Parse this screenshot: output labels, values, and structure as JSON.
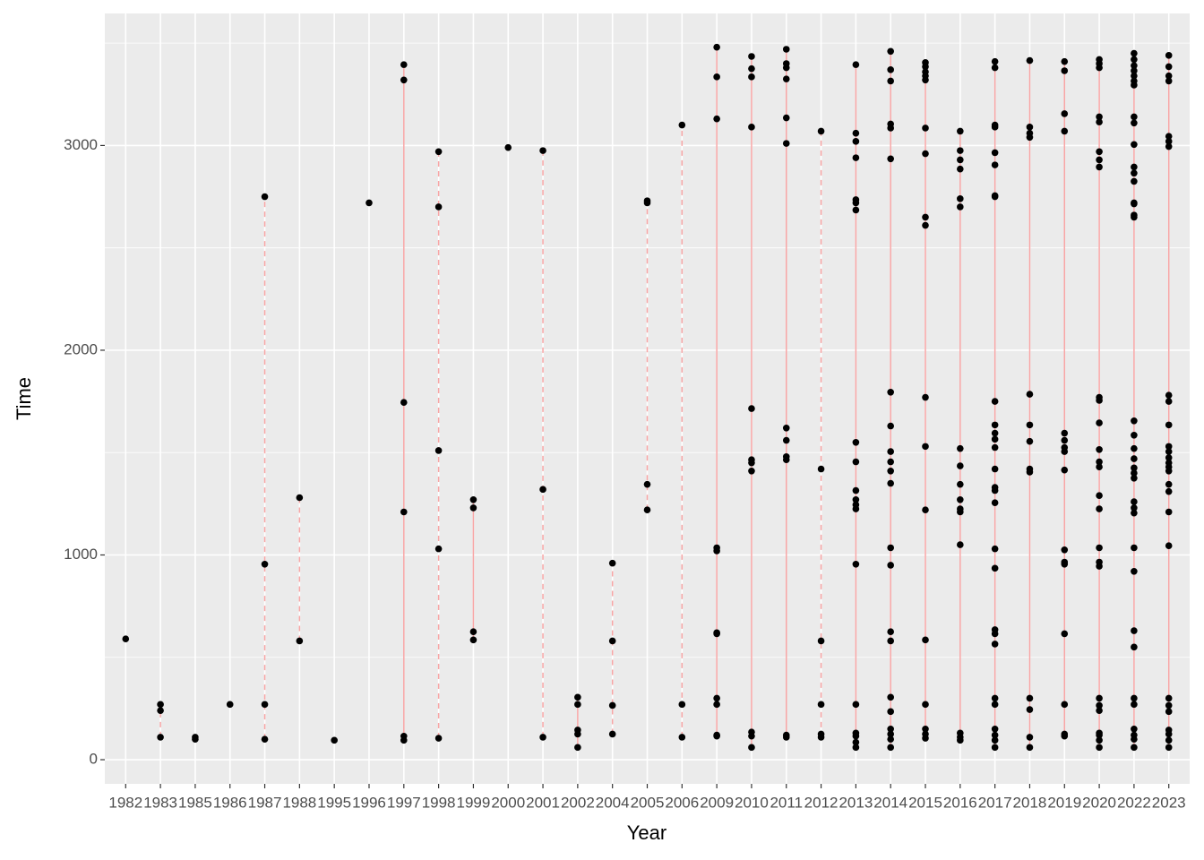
{
  "chart_data": {
    "type": "scatter",
    "x_label": "Year",
    "y_label": "Time",
    "categories": [
      "1982",
      "1983",
      "1985",
      "1986",
      "1987",
      "1988",
      "1995",
      "1996",
      "1997",
      "1998",
      "1999",
      "2000",
      "2001",
      "2002",
      "2004",
      "2005",
      "2006",
      "2009",
      "2010",
      "2011",
      "2012",
      "2013",
      "2014",
      "2015",
      "2016",
      "2017",
      "2018",
      "2019",
      "2020",
      "2022",
      "2023"
    ],
    "values": [
      [
        590
      ],
      [
        270,
        240,
        110
      ],
      [
        110,
        100
      ],
      [
        270
      ],
      [
        2750,
        955,
        270,
        100
      ],
      [
        1280,
        580
      ],
      [
        95
      ],
      [
        2720
      ],
      [
        3395,
        3320,
        1745,
        1210,
        115,
        95
      ],
      [
        2970,
        2700,
        1510,
        1030,
        105
      ],
      [
        1270,
        1230,
        625,
        585
      ],
      [
        2990
      ],
      [
        2975,
        1320,
        110
      ],
      [
        305,
        270,
        145,
        125,
        60
      ],
      [
        960,
        580,
        265,
        125
      ],
      [
        2730,
        2720,
        1345,
        1220
      ],
      [
        3100,
        270,
        110
      ],
      [
        3480,
        3335,
        3130,
        1035,
        1020,
        620,
        615,
        300,
        270,
        120,
        115
      ],
      [
        3435,
        3375,
        3335,
        3090,
        1715,
        1465,
        1450,
        1410,
        135,
        115,
        60
      ],
      [
        3470,
        3400,
        3380,
        3325,
        3135,
        3010,
        1620,
        1560,
        1480,
        1465,
        120,
        110
      ],
      [
        3070,
        1420,
        580,
        270,
        125,
        110
      ],
      [
        3395,
        3060,
        3020,
        2940,
        2735,
        2720,
        2685,
        1550,
        1455,
        1315,
        1270,
        1245,
        1225,
        955,
        270,
        130,
        115,
        85,
        60
      ],
      [
        3460,
        3370,
        3315,
        3105,
        3085,
        2935,
        1795,
        1630,
        1505,
        1455,
        1410,
        1350,
        1035,
        950,
        625,
        580,
        305,
        235,
        150,
        125,
        100,
        60
      ],
      [
        3405,
        3385,
        3360,
        3340,
        3320,
        3085,
        2960,
        2650,
        2610,
        1770,
        1530,
        1220,
        585,
        270,
        150,
        125,
        105
      ],
      [
        3070,
        2975,
        2930,
        2885,
        2740,
        2700,
        1520,
        1435,
        1345,
        1270,
        1225,
        1210,
        1050,
        130,
        110,
        95
      ],
      [
        3410,
        3380,
        3100,
        3090,
        2965,
        2905,
        2755,
        2750,
        1750,
        1635,
        1595,
        1565,
        1525,
        1420,
        1330,
        1315,
        1255,
        1030,
        935,
        635,
        615,
        565,
        300,
        270,
        150,
        120,
        95,
        60
      ],
      [
        3415,
        3090,
        3060,
        3040,
        1785,
        1635,
        1555,
        1420,
        1405,
        300,
        245,
        110,
        60
      ],
      [
        3410,
        3365,
        3155,
        3070,
        1595,
        1560,
        1525,
        1505,
        1415,
        1025,
        965,
        955,
        615,
        270,
        125,
        115
      ],
      [
        3420,
        3400,
        3380,
        3140,
        3115,
        2970,
        2930,
        2895,
        1770,
        1755,
        1645,
        1515,
        1455,
        1430,
        1290,
        1225,
        1035,
        965,
        945,
        300,
        265,
        240,
        130,
        120,
        95,
        60
      ],
      [
        3450,
        3420,
        3390,
        3365,
        3340,
        3315,
        3295,
        3140,
        3110,
        3005,
        2895,
        2865,
        2825,
        2720,
        2715,
        2660,
        2650,
        1655,
        1585,
        1520,
        1470,
        1425,
        1400,
        1375,
        1260,
        1230,
        1205,
        1035,
        920,
        630,
        550,
        300,
        270,
        150,
        120,
        100,
        60
      ],
      [
        3440,
        3385,
        3340,
        3315,
        3045,
        3020,
        2995,
        1780,
        1750,
        1635,
        1530,
        1505,
        1475,
        1450,
        1430,
        1410,
        1345,
        1310,
        1210,
        1045,
        300,
        265,
        235,
        145,
        125,
        95,
        60
      ]
    ],
    "line_types": [
      "solid",
      "dashed",
      "solid",
      "solid",
      "dashed",
      "dashed",
      "solid",
      "solid",
      "solid",
      "dashed",
      "solid",
      "solid",
      "dashed",
      "solid",
      "dashed",
      "dashed",
      "dashed",
      "solid",
      "solid",
      "solid",
      "dashed",
      "solid",
      "solid",
      "solid",
      "solid",
      "solid",
      "solid",
      "solid",
      "solid",
      "solid",
      "solid"
    ],
    "point_color": "#000000",
    "line_color": "#f8a5a5",
    "ylim": [
      -118,
      3645
    ],
    "yticks": [
      0,
      1000,
      2000,
      3000
    ],
    "yminorticks": [
      500,
      1500,
      2500,
      3500
    ],
    "grid": true
  }
}
